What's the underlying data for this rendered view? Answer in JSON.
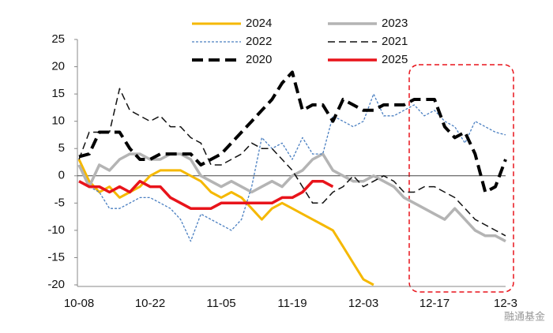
{
  "chart_data": {
    "type": "line",
    "categories": [
      "10-08",
      null,
      null,
      null,
      null,
      null,
      null,
      "10-22",
      null,
      null,
      null,
      null,
      null,
      null,
      "11-05",
      null,
      null,
      null,
      null,
      null,
      null,
      "11-19",
      null,
      null,
      null,
      null,
      null,
      null,
      "12-03",
      null,
      null,
      null,
      null,
      null,
      null,
      "12-17",
      null,
      null,
      null,
      null,
      null,
      null,
      "12-3"
    ],
    "ylim": [
      -20,
      25
    ],
    "yticks": [
      -20,
      -15,
      -10,
      -5,
      0,
      5,
      10,
      15,
      20,
      25
    ],
    "grid": false,
    "series": [
      {
        "name": "2024",
        "color": "#f5b800",
        "values": [
          3,
          -1,
          -3,
          -2,
          -4,
          -3,
          -2,
          0,
          1,
          1,
          1,
          0,
          -1,
          -3,
          -4,
          -3,
          -4,
          -6,
          -8,
          -6,
          -5,
          -6,
          -7,
          -8,
          -9,
          -10,
          -13,
          -16,
          -19,
          -20,
          null,
          null,
          null,
          null,
          null,
          null,
          null,
          null,
          null,
          null,
          null,
          null,
          null
        ]
      },
      {
        "name": "2023",
        "color": "#b4b4b4",
        "values": [
          2,
          -2,
          2,
          1,
          3,
          4,
          4,
          3,
          3,
          4,
          4,
          3,
          0,
          -1,
          -2,
          -1,
          -2,
          -3,
          -2,
          -1,
          -2,
          0,
          1,
          3,
          4,
          1,
          0,
          -1,
          -1,
          0,
          -1,
          -2,
          -4,
          -5,
          -6,
          -7,
          -8,
          -6,
          -8,
          -10,
          -11,
          -11,
          -12
        ]
      },
      {
        "name": "2022",
        "color": "#4a7fc1",
        "values": [
          -1,
          -2,
          -3,
          -6,
          -6,
          -5,
          -4,
          -4,
          -5,
          -6,
          -8,
          -12,
          -7,
          -8,
          -9,
          -10,
          -8,
          -2,
          7,
          5,
          6,
          3,
          7,
          4,
          4,
          11,
          10,
          9,
          10,
          15,
          11,
          11,
          12,
          13,
          11,
          12,
          10,
          9,
          6,
          10,
          9,
          8,
          7.5
        ]
      },
      {
        "name": "2021",
        "color": "#111111",
        "values": [
          3,
          8,
          8,
          8,
          16,
          12,
          11,
          10,
          11,
          9,
          9,
          7,
          6,
          2,
          2,
          3,
          4,
          6,
          5,
          5,
          3,
          1,
          -2,
          -5,
          -5,
          -3,
          -2,
          0,
          -2,
          -1,
          0,
          -1,
          -3,
          -3,
          -2,
          -2,
          -3,
          -4,
          -6,
          -8,
          -9,
          -10,
          -11
        ]
      },
      {
        "name": "2020",
        "color": "#000000",
        "values": [
          3.5,
          4,
          8,
          8,
          8,
          5,
          3,
          3,
          4,
          4,
          4,
          4,
          2,
          3,
          4,
          6,
          8,
          10,
          12,
          14,
          17,
          19,
          12,
          13,
          13,
          10,
          14,
          13,
          12,
          12,
          13,
          13,
          13,
          14,
          14,
          14,
          9,
          7,
          8,
          4,
          -3,
          -2,
          3
        ]
      },
      {
        "name": "2025",
        "color": "#e8141b",
        "values": [
          -1,
          -2,
          -2,
          -3,
          -2,
          -3,
          -1,
          -2,
          -2,
          -4,
          -5,
          -6,
          -6,
          -6,
          -5,
          -5,
          -5,
          -5,
          -5,
          -5,
          -4,
          -4,
          -3,
          -1,
          -1,
          -2,
          null,
          null,
          null,
          null,
          null,
          null,
          null,
          null,
          null,
          null,
          null,
          null,
          null,
          null,
          null,
          null,
          null
        ]
      }
    ]
  },
  "watermark": "融通基金"
}
